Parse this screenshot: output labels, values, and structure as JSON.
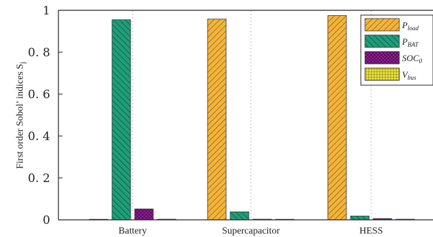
{
  "chart_data": {
    "type": "bar",
    "ylabel": "First order Sobol’ indices S",
    "ylabel_sub": "j",
    "ylim": [
      0,
      1
    ],
    "yticks": [
      "0",
      "0. 2",
      "0. 4",
      "0. 6",
      "0. 8",
      "1"
    ],
    "categories": [
      "Battery",
      "Supercapacitor",
      "HESS"
    ],
    "grid": "vertical dotted at categories",
    "legend_placement": "top-right",
    "series": [
      {
        "name": "P",
        "sub": "load",
        "color": "#F4B43A",
        "pattern": "hatch-left",
        "values": [
          0.0,
          0.958,
          0.975
        ]
      },
      {
        "name": "P",
        "sub": "BAT",
        "color": "#1F9E78",
        "pattern": "hatch-right",
        "values": [
          0.955,
          0.038,
          0.018
        ]
      },
      {
        "name": "SOC",
        "sub": "0",
        "color": "#9B1FA0",
        "pattern": "cross",
        "values": [
          0.052,
          0.003,
          0.006
        ]
      },
      {
        "name": "V",
        "sub": "bus",
        "color": "#E8E03A",
        "pattern": "grid",
        "values": [
          0.003,
          0.002,
          0.003
        ]
      }
    ]
  }
}
